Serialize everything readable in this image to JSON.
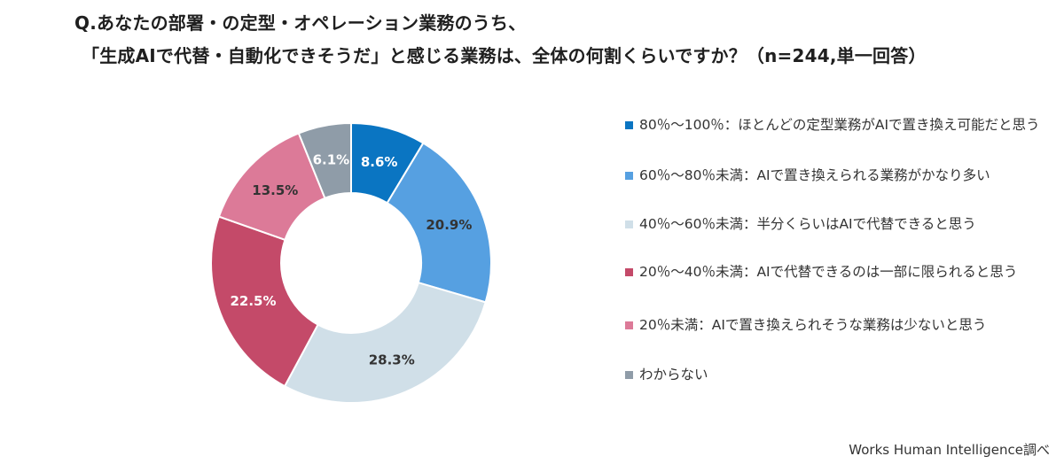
{
  "title": {
    "line1": "Q.あなたの部署・の定型・オペレーション業務のうち、",
    "line2": "「生成AIで代替・自動化できそうだ」と感じる業務は、全体の何割くらいですか？（n=244,単一回答）"
  },
  "chart_data": {
    "type": "donut",
    "unit": "%",
    "slices": [
      {
        "label": "80％～100％：ほとんどの定型業務がAIで置き換え可能だと思う",
        "value": 8.6,
        "display": "8.6%",
        "color": "#0a75c2",
        "text_color": "#ffffff"
      },
      {
        "label": "60％～80％未満：AIで置き換えられる業務がかなり多い",
        "value": 20.9,
        "display": "20.9%",
        "color": "#56a0e1",
        "text_color": "#333333"
      },
      {
        "label": "40％～60％未満：半分くらいはAIで代替できると思う",
        "value": 28.3,
        "display": "28.3%",
        "color": "#d0dfe8",
        "text_color": "#333333"
      },
      {
        "label": "20％～40％未満：AIで代替できるのは一部に限られると思う",
        "value": 22.5,
        "display": "22.5%",
        "color": "#c44a69",
        "text_color": "#ffffff"
      },
      {
        "label": "20％未満：AIで置き換えられそうな業務は少ないと思う",
        "value": 13.5,
        "display": "13.5%",
        "color": "#dc7a98",
        "text_color": "#333333"
      },
      {
        "label": "わからない",
        "value": 6.1,
        "display": "6.1%",
        "color": "#8f9ca8",
        "text_color": "#ffffff"
      }
    ],
    "legend_position": "right"
  },
  "credit": "Works Human Intelligence調べ"
}
